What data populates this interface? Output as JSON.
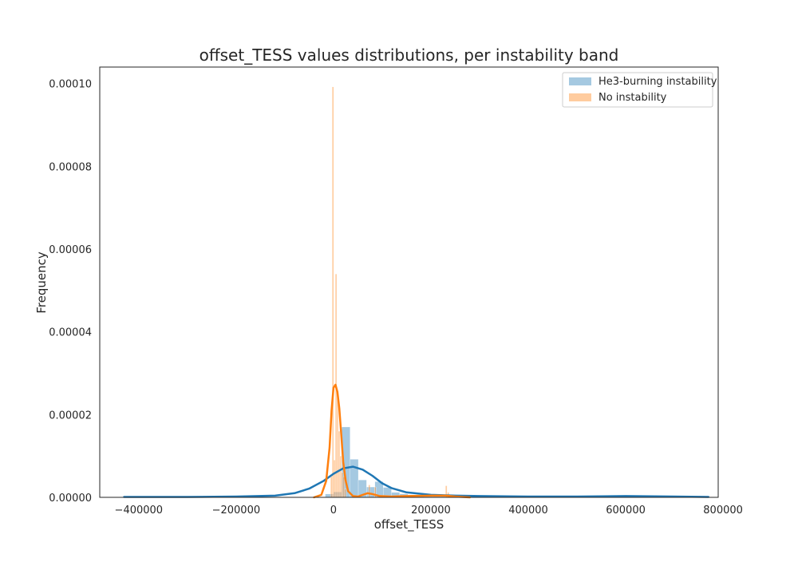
{
  "chart_data": {
    "type": "histogram+kde",
    "title": "offset_TESS values distributions, per instability band",
    "xlabel": "offset_TESS",
    "ylabel": "Frequency",
    "xlim": [
      -480000,
      790000
    ],
    "ylim": [
      0,
      0.000104
    ],
    "xticks": [
      -400000,
      -200000,
      0,
      200000,
      400000,
      600000,
      800000
    ],
    "xtick_labels": [
      "−400000",
      "−200000",
      "0",
      "200000",
      "400000",
      "600000",
      "800000"
    ],
    "yticks": [
      0,
      2e-05,
      4e-05,
      6e-05,
      8e-05,
      0.0001
    ],
    "ytick_labels": [
      "0.00000",
      "0.00002",
      "0.00004",
      "0.00006",
      "0.00008",
      "0.00010"
    ],
    "grid": false,
    "legend_position": "top-right",
    "series": [
      {
        "name": "He3-burning instability",
        "color": "#1f77b4",
        "histogram": {
          "bin_width": 17000,
          "bins": [
            [
              -17000,
              8e-07
            ],
            [
              0,
              1.3e-06
            ],
            [
              17000,
              1.7e-05
            ],
            [
              34000,
              9.2e-06
            ],
            [
              51000,
              4.2e-06
            ],
            [
              68000,
              2.5e-06
            ],
            [
              85000,
              3.8e-06
            ],
            [
              102000,
              2.4e-06
            ],
            [
              119000,
              1.2e-06
            ],
            [
              136000,
              8e-07
            ],
            [
              153000,
              5e-07
            ],
            [
              170000,
              3e-07
            ],
            [
              187000,
              2e-07
            ],
            [
              204000,
              2e-07
            ],
            [
              221000,
              2e-07
            ],
            [
              238000,
              2e-07
            ],
            [
              255000,
              1e-07
            ]
          ]
        },
        "kde": {
          "x": [
            -430000,
            -300000,
            -200000,
            -120000,
            -80000,
            -50000,
            -20000,
            0,
            20000,
            40000,
            60000,
            80000,
            100000,
            120000,
            150000,
            200000,
            250000,
            300000,
            400000,
            500000,
            600000,
            700000,
            770000
          ],
          "y": [
            1e-07,
            1e-07,
            2e-07,
            4e-07,
            1e-06,
            2.1e-06,
            4e-06,
            5.7e-06,
            7e-06,
            7.4e-06,
            6.7e-06,
            5.2e-06,
            3.4e-06,
            2.2e-06,
            1.2e-06,
            6e-07,
            4e-07,
            3e-07,
            2e-07,
            2e-07,
            3e-07,
            2e-07,
            1e-07
          ]
        }
      },
      {
        "name": "No instability",
        "color": "#ff7f0e",
        "histogram": {
          "bin_width": 3200,
          "bins": [
            [
              -6000,
              5e-06
            ],
            [
              -2800,
              9.92e-05
            ],
            [
              400,
              9e-06
            ],
            [
              3600,
              5.4e-05
            ],
            [
              6800,
              2.5e-05
            ],
            [
              10000,
              1.6e-05
            ],
            [
              13200,
              1e-05
            ],
            [
              16400,
              6e-06
            ],
            [
              19600,
              5e-06
            ],
            [
              22800,
              2e-06
            ],
            [
              72000,
              3e-06
            ],
            [
              84000,
              2.5e-06
            ],
            [
              230000,
              2.8e-06
            ],
            [
              234000,
              1.2e-06
            ]
          ]
        },
        "kde": {
          "x": [
            -40000,
            -25000,
            -15000,
            -8000,
            -4000,
            0,
            4000,
            8000,
            12000,
            16000,
            20000,
            25000,
            30000,
            40000,
            50000,
            60000,
            70000,
            80000,
            95000,
            120000,
            150000,
            200000,
            230000,
            250000,
            280000
          ],
          "y": [
            0,
            6e-07,
            4e-06,
            1.2e-05,
            2.1e-05,
            2.65e-05,
            2.72e-05,
            2.55e-05,
            2.15e-05,
            1.5e-05,
            8.5e-06,
            4e-06,
            1.5e-06,
            3e-07,
            2e-07,
            6e-07,
            1e-06,
            8e-07,
            3e-07,
            2e-07,
            3e-07,
            4e-07,
            4e-07,
            2e-07,
            0
          ]
        }
      }
    ]
  }
}
